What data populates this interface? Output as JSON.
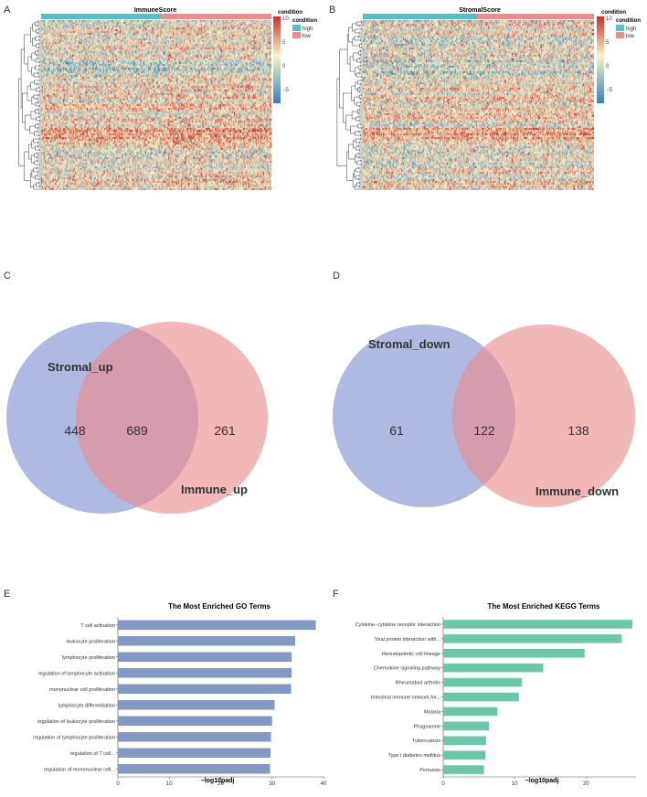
{
  "panels": {
    "A": "A",
    "B": "B",
    "C": "C",
    "D": "D",
    "E": "E",
    "F": "F"
  },
  "colors": {
    "high": "#52bfc9",
    "low": "#f08a8c",
    "venn_left": "#7f8ed0",
    "venn_right": "#ea8a8c",
    "go_bar": "#8399c4",
    "kegg_bar": "#6cc6a8",
    "heat_low": "#3a7fb8",
    "heat_mid": "#f8f4c8",
    "heat_high": "#c8302a"
  },
  "heatmaps": [
    {
      "title": "ImmuneScore",
      "legend_title": "condition",
      "legend_items": [
        "high",
        "low"
      ],
      "scale_ticks": [
        "10",
        "5",
        "0",
        "−5"
      ],
      "scale_range": [
        -8,
        10
      ]
    },
    {
      "title": "StromalScore",
      "legend_title": "condition",
      "legend_items": [
        "high",
        "low"
      ],
      "scale_ticks": [
        "10",
        "5",
        "0",
        "−5"
      ],
      "scale_range": [
        -8,
        10
      ]
    }
  ],
  "venns": [
    {
      "left_label": "Stromal_up",
      "right_label": "Immune_up",
      "left_only": "448",
      "both": "689",
      "right_only": "261"
    },
    {
      "left_label": "Stromal_down",
      "right_label": "Immune_down",
      "left_only": "61",
      "both": "122",
      "right_only": "138"
    }
  ],
  "chart_data": [
    {
      "type": "bar",
      "orientation": "horizontal",
      "title": "The Most Enriched GO Terms",
      "xlabel": "−log10padj",
      "xlim": [
        0,
        40
      ],
      "xticks": [
        0,
        10,
        20,
        30,
        40
      ],
      "categories": [
        "T cell activation",
        "leukocyte proliferation",
        "lymphocyte proliferation",
        "regulation of lymphocyte activation",
        "mononuclear cell proliferation",
        "lymphocyte differentiation",
        "regulation of leukocyte proliferation",
        "regulation of lymphocyte proliferation",
        "regulation of T cell...",
        "regulation of mononuclear cell..."
      ],
      "values": [
        38.5,
        34.5,
        33.8,
        33.8,
        33.7,
        30.5,
        30.0,
        29.8,
        29.7,
        29.6
      ]
    },
    {
      "type": "bar",
      "orientation": "horizontal",
      "title": "The Most Enriched KEGG Terms",
      "xlabel": "−log10padj",
      "xlim": [
        0,
        27
      ],
      "xticks": [
        0,
        10,
        20
      ],
      "categories": [
        "Cytokine−cytokine receptor interaction",
        "Viral protein interaction with...",
        "Hematopoietic cell lineage",
        "Chemokine signaling pathway",
        "Rheumatoid arthritis",
        "Intestinal immune network for...",
        "Malaria",
        "Phagosome",
        "Tuberculosis",
        "Type I diabetes mellitus",
        "Pertussis"
      ],
      "values": [
        26.5,
        25.0,
        19.8,
        14.0,
        11.0,
        10.6,
        7.6,
        6.4,
        6.0,
        5.9,
        5.7
      ]
    }
  ]
}
